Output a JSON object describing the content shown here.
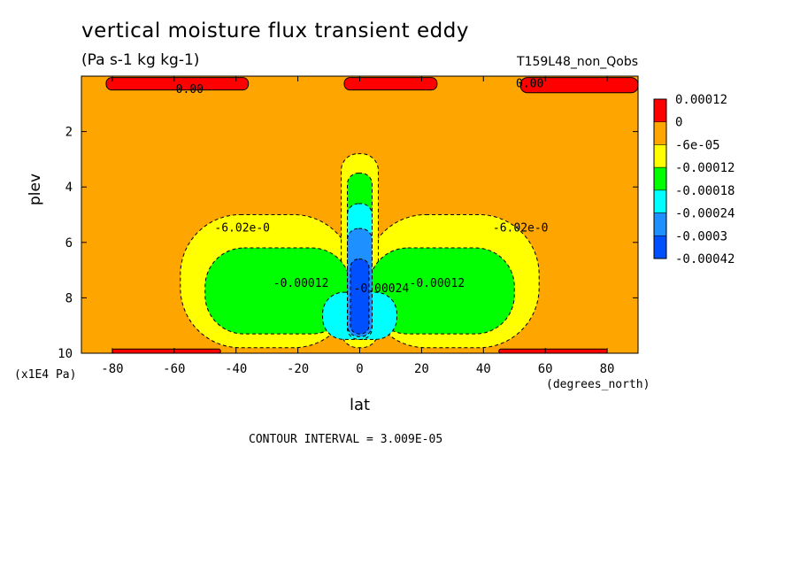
{
  "chart_data": {
    "type": "heatmap",
    "title": "vertical moisture flux transient eddy",
    "units": "(Pa s-1 kg kg-1)",
    "run_label": "T159L48_non_Qobs",
    "xlabel": "lat",
    "xunits": "(degrees_north)",
    "ylabel": "plev",
    "yunits": "(x1E4 Pa)",
    "xlim": [
      -90,
      90
    ],
    "ylim": [
      10,
      0
    ],
    "x_ticks": [
      "-80",
      "-60",
      "-40",
      "-20",
      "0",
      "20",
      "40",
      "60",
      "80"
    ],
    "y_ticks": [
      "2",
      "4",
      "6",
      "8",
      "10"
    ],
    "contour_interval": "CONTOUR INTERVAL = 3.009E-05",
    "colorbar": {
      "labels": [
        "0.00012",
        "0",
        "-6e-05",
        "-0.00012",
        "-0.00018",
        "-0.00024",
        "-0.0003",
        "-0.00042"
      ],
      "colors": [
        "#ff0000",
        "#ffa500",
        "#ffff00",
        "#00ff00",
        "#00ffff",
        "#1e90ff",
        "#0050ff"
      ]
    },
    "contour_labels": [
      {
        "text": "0.00",
        "lat": -55,
        "plev": 0.6
      },
      {
        "text": "0.00",
        "lat": 55,
        "plev": 0.4
      },
      {
        "text": "-6.02e-0",
        "lat": -38,
        "plev": 5.6
      },
      {
        "text": "-6.02e-0",
        "lat": 52,
        "plev": 5.6
      },
      {
        "text": "-0.00012",
        "lat": -19,
        "plev": 7.6
      },
      {
        "text": "-0.00012",
        "lat": 25,
        "plev": 7.6
      },
      {
        "text": "-0.00024",
        "lat": 7,
        "plev": 7.8
      }
    ],
    "fields": {
      "bg_color": "#ffa500",
      "bands": [
        {
          "level": "0.00012",
          "color": "#ff0000",
          "regions": [
            {
              "lat": [
                -82,
                -36
              ],
              "plev": [
                0.05,
                0.5
              ]
            },
            {
              "lat": [
                -5,
                25
              ],
              "plev": [
                0.05,
                0.5
              ]
            },
            {
              "lat": [
                52,
                90
              ],
              "plev": [
                0.05,
                0.6
              ]
            },
            {
              "lat": [
                -80,
                -45
              ],
              "plev": [
                9.85,
                10.0
              ]
            },
            {
              "lat": [
                45,
                80
              ],
              "plev": [
                9.85,
                10.0
              ]
            }
          ]
        },
        {
          "level": "-6e-05",
          "color": "#ffff00",
          "regions": [
            {
              "lat": [
                -58,
                -2
              ],
              "plev": [
                5.0,
                9.8
              ]
            },
            {
              "lat": [
                2,
                58
              ],
              "plev": [
                5.0,
                9.8
              ]
            },
            {
              "lat": [
                -6,
                6
              ],
              "plev": [
                2.8,
                9.8
              ]
            }
          ]
        },
        {
          "level": "-0.00012",
          "color": "#00ff00",
          "regions": [
            {
              "lat": [
                -50,
                -3
              ],
              "plev": [
                6.2,
                9.3
              ]
            },
            {
              "lat": [
                3,
                50
              ],
              "plev": [
                6.2,
                9.3
              ]
            },
            {
              "lat": [
                -4,
                4
              ],
              "plev": [
                3.5,
                9.5
              ]
            }
          ]
        },
        {
          "level": "-0.00018",
          "color": "#00ffff",
          "regions": [
            {
              "lat": [
                -12,
                12
              ],
              "plev": [
                7.8,
                9.5
              ]
            },
            {
              "lat": [
                -4,
                4
              ],
              "plev": [
                4.6,
                9.5
              ]
            }
          ]
        },
        {
          "level": "-0.00024",
          "color": "#1e90ff",
          "regions": [
            {
              "lat": [
                -4,
                4
              ],
              "plev": [
                5.5,
                9.4
              ]
            }
          ]
        },
        {
          "level": "-0.0003",
          "color": "#0050ff",
          "regions": [
            {
              "lat": [
                -3,
                3
              ],
              "plev": [
                6.6,
                9.3
              ]
            }
          ]
        }
      ]
    }
  }
}
